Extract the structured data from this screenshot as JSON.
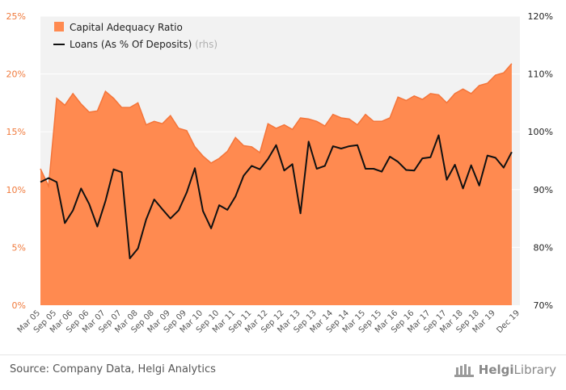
{
  "chart_data": {
    "type": "area+line",
    "title": "",
    "xlabel": "",
    "ylabel_left": "",
    "ylabel_right": "",
    "categories": [
      "Mar 05",
      "Jun 05",
      "Sep 05",
      "Dec 05",
      "Mar 06",
      "Jun 06",
      "Sep 06",
      "Dec 06",
      "Mar 07",
      "Jun 07",
      "Sep 07",
      "Dec 07",
      "Mar 08",
      "Jun 08",
      "Sep 08",
      "Dec 08",
      "Mar 09",
      "Jun 09",
      "Sep 09",
      "Dec 09",
      "Mar 10",
      "Jun 10",
      "Sep 10",
      "Dec 10",
      "Mar 11",
      "Jun 11",
      "Sep 11",
      "Dec 11",
      "Mar 12",
      "Jun 12",
      "Sep 12",
      "Dec 12",
      "Mar 13",
      "Jun 13",
      "Sep 13",
      "Dec 13",
      "Mar 14",
      "Jun 14",
      "Sep 14",
      "Dec 14",
      "Mar 15",
      "Jun 15",
      "Sep 15",
      "Dec 15",
      "Mar 16",
      "Jun 16",
      "Sep 16",
      "Dec 16",
      "Mar 17",
      "Jun 17",
      "Sep 17",
      "Dec 17",
      "Mar 18",
      "Jun 18",
      "Sep 18",
      "Dec 18",
      "Mar 19",
      "Jun 19",
      "Sep 19",
      "Dec 19"
    ],
    "x_tick_labels": [
      "Mar 05",
      "Sep 05",
      "Mar 06",
      "Sep 06",
      "Mar 07",
      "Sep 07",
      "Mar 08",
      "Sep 08",
      "Mar 09",
      "Sep 09",
      "Mar 10",
      "Sep 10",
      "Mar 11",
      "Sep 11",
      "Mar 12",
      "Sep 12",
      "Mar 13",
      "Sep 13",
      "Mar 14",
      "Sep 14",
      "Mar 15",
      "Sep 15",
      "Mar 16",
      "Sep 16",
      "Mar 17",
      "Sep 17",
      "Mar 18",
      "Sep 18",
      "Mar 19",
      "Dec 19"
    ],
    "y_left": {
      "ylim": [
        0,
        25
      ],
      "ticks": [
        "0%",
        "5%",
        "10%",
        "15%",
        "20%",
        "25%"
      ]
    },
    "y_right": {
      "ylim": [
        70,
        120
      ],
      "ticks": [
        "70%",
        "80%",
        "90%",
        "100%",
        "110%",
        "120%"
      ]
    },
    "series": [
      {
        "name": "Capital Adequacy Ratio",
        "kind": "area",
        "axis": "left",
        "color": "#ff8a50",
        "line_color": "#f4753a",
        "values": [
          11.8,
          10.3,
          17.9,
          17.3,
          18.3,
          17.4,
          16.7,
          16.8,
          18.5,
          17.9,
          17.1,
          17.1,
          17.5,
          15.6,
          15.9,
          15.7,
          16.4,
          15.3,
          15.1,
          13.7,
          12.9,
          12.3,
          12.7,
          13.3,
          14.5,
          13.8,
          13.7,
          13.2,
          15.7,
          15.3,
          15.6,
          15.2,
          16.2,
          16.1,
          15.9,
          15.5,
          16.5,
          16.2,
          16.1,
          15.6,
          16.5,
          15.9,
          15.9,
          16.2,
          18.0,
          17.7,
          18.1,
          17.8,
          18.3,
          18.2,
          17.5,
          18.3,
          18.7,
          18.3,
          19.0,
          19.2,
          19.9,
          20.1,
          20.9,
          null
        ]
      },
      {
        "name": "Loans (As % Of Deposits)",
        "legend_suffix": "(rhs)",
        "kind": "line",
        "axis": "right",
        "color": "#111111",
        "values": [
          91.3,
          92.0,
          91.3,
          84.2,
          86.4,
          90.2,
          87.5,
          83.6,
          88.0,
          93.5,
          93.0,
          78.1,
          79.8,
          84.8,
          88.3,
          86.6,
          85.0,
          86.4,
          89.5,
          93.7,
          86.3,
          83.3,
          87.3,
          86.5,
          88.8,
          92.4,
          94.1,
          93.5,
          95.3,
          97.7,
          93.3,
          94.4,
          85.9,
          98.3,
          93.6,
          94.1,
          97.5,
          97.1,
          97.5,
          97.7,
          93.6,
          93.6,
          93.1,
          95.7,
          94.8,
          93.4,
          93.3,
          95.4,
          95.6,
          99.4,
          91.7,
          94.3,
          90.2,
          94.2,
          90.7,
          95.9,
          95.5,
          93.8,
          96.5,
          null
        ]
      }
    ],
    "legend_position": "top-left",
    "grid": true
  },
  "footer": {
    "source": "Source: Company Data, Helgi Analytics",
    "logo_text_bold": "Helgi",
    "logo_text": "Library"
  }
}
